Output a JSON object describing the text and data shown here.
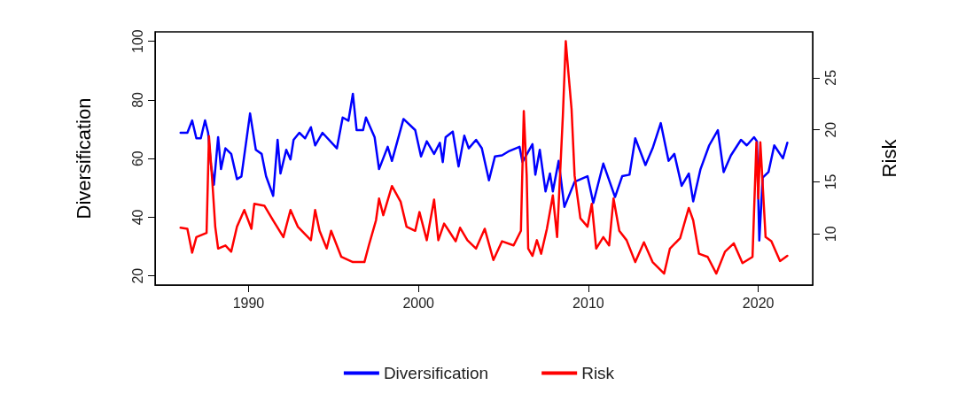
{
  "chart_data": {
    "type": "line",
    "ylabel": "Diversification",
    "y2label": "Risk",
    "xlim": [
      1984.5,
      2023.2
    ],
    "xticks": [
      1990,
      2000,
      2010,
      2020
    ],
    "ylim": [
      16.9,
      103.2
    ],
    "yticks": [
      20,
      40,
      60,
      80,
      100
    ],
    "y2lim": [
      5.1,
      29.4
    ],
    "y2ticks": [
      10,
      15,
      20,
      25
    ],
    "legend": "bottom",
    "marker": "none",
    "line_style": "solid",
    "series": [
      {
        "name": "Diversification",
        "color": "#0000ff",
        "x": [
          1986.0,
          1986.4,
          1986.68,
          1986.93,
          1987.19,
          1987.44,
          1987.62,
          1987.79,
          1987.96,
          1988.21,
          1988.38,
          1988.64,
          1988.98,
          1989.32,
          1989.58,
          1990.09,
          1990.43,
          1990.77,
          1991.03,
          1991.45,
          1991.71,
          1991.88,
          1992.22,
          1992.47,
          1992.65,
          1992.99,
          1993.33,
          1993.67,
          1993.92,
          1994.35,
          1995.2,
          1995.54,
          1995.88,
          1996.14,
          1996.36,
          1996.74,
          1996.91,
          1997.42,
          1997.68,
          1998.19,
          1998.44,
          1999.12,
          1999.81,
          2000.15,
          2000.49,
          2000.92,
          2001.26,
          2001.43,
          2001.6,
          2002.02,
          2002.36,
          2002.7,
          2002.96,
          2003.39,
          2003.73,
          2004.15,
          2004.5,
          2004.92,
          2005.35,
          2005.95,
          2006.12,
          2006.71,
          2006.88,
          2007.14,
          2007.48,
          2007.74,
          2007.91,
          2008.25,
          2008.59,
          2009.19,
          2009.95,
          2010.29,
          2010.88,
          2011.57,
          2011.99,
          2012.42,
          2012.76,
          2013.36,
          2013.78,
          2014.26,
          2014.72,
          2015.06,
          2015.49,
          2015.91,
          2016.17,
          2016.6,
          2017.11,
          2017.62,
          2017.96,
          2018.39,
          2018.98,
          2019.32,
          2019.75,
          2019.92,
          2020.06,
          2020.26,
          2020.6,
          2020.94,
          2021.45,
          2021.71
        ],
        "values": [
          68.8,
          68.8,
          73.0,
          66.9,
          66.9,
          73.0,
          68.8,
          57.8,
          51.1,
          67.3,
          56.4,
          63.5,
          61.6,
          53.0,
          53.9,
          75.4,
          63.0,
          61.6,
          54.0,
          47.3,
          66.4,
          54.9,
          63.0,
          59.7,
          66.4,
          68.8,
          66.9,
          70.7,
          64.5,
          68.8,
          63.5,
          74.0,
          72.9,
          82.1,
          69.7,
          69.7,
          74.0,
          67.3,
          56.4,
          64.0,
          59.2,
          73.5,
          69.7,
          60.7,
          65.9,
          61.6,
          65.4,
          58.8,
          67.3,
          69.2,
          57.3,
          67.8,
          63.5,
          66.4,
          63.5,
          52.6,
          60.7,
          61.1,
          62.6,
          64.0,
          58.8,
          64.9,
          54.5,
          63.0,
          48.8,
          54.9,
          48.8,
          59.2,
          43.5,
          52.1,
          54.0,
          44.9,
          58.3,
          46.9,
          54.0,
          54.5,
          66.9,
          57.8,
          63.5,
          72.1,
          59.2,
          61.6,
          50.7,
          54.9,
          45.4,
          56.4,
          64.5,
          69.7,
          55.4,
          61.1,
          66.4,
          64.5,
          67.3,
          65.9,
          32.1,
          53.5,
          55.4,
          64.5,
          60.1,
          65.4
        ]
      },
      {
        "name": "Risk",
        "color": "#ff0000",
        "axis": "y2",
        "x": [
          1986.0,
          1986.4,
          1986.68,
          1986.93,
          1987.53,
          1987.67,
          1987.87,
          1988.04,
          1988.21,
          1988.64,
          1988.98,
          1989.32,
          1989.75,
          1990.17,
          1990.34,
          1990.94,
          1991.45,
          1992.05,
          1992.47,
          1992.9,
          1993.67,
          1993.92,
          1994.18,
          1994.6,
          1994.86,
          1995.46,
          1996.14,
          1996.82,
          1997.08,
          1997.5,
          1997.68,
          1997.93,
          1998.44,
          1998.95,
          1999.3,
          1999.81,
          2000.06,
          2000.49,
          2000.92,
          2001.17,
          2001.51,
          2002.19,
          2002.45,
          2002.88,
          2003.39,
          2003.9,
          2004.41,
          2004.92,
          2005.6,
          2006.03,
          2006.2,
          2006.37,
          2006.46,
          2006.71,
          2006.97,
          2007.22,
          2007.56,
          2007.91,
          2008.16,
          2008.5,
          2008.67,
          2008.84,
          2009.01,
          2009.19,
          2009.53,
          2009.95,
          2010.2,
          2010.46,
          2010.88,
          2011.22,
          2011.48,
          2011.82,
          2012.25,
          2012.76,
          2013.27,
          2013.78,
          2014.46,
          2014.8,
          2015.4,
          2015.91,
          2016.17,
          2016.51,
          2017.02,
          2017.53,
          2018.04,
          2018.56,
          2019.07,
          2019.66,
          2019.89,
          2020.0,
          2020.12,
          2020.43,
          2020.77,
          2021.28,
          2021.71
        ],
        "values": [
          10.6,
          10.5,
          8.2,
          9.7,
          10.1,
          19.4,
          15.0,
          10.7,
          8.6,
          8.9,
          8.3,
          10.7,
          12.3,
          10.5,
          12.9,
          12.7,
          11.3,
          9.7,
          12.3,
          10.7,
          9.4,
          12.3,
          10.3,
          8.6,
          10.3,
          7.8,
          7.3,
          7.3,
          8.9,
          11.3,
          13.4,
          11.8,
          14.6,
          13.1,
          10.7,
          10.3,
          12.1,
          9.4,
          13.3,
          9.4,
          11.0,
          9.3,
          10.6,
          9.4,
          8.6,
          10.5,
          7.5,
          9.3,
          8.9,
          10.3,
          21.8,
          15.6,
          8.6,
          7.9,
          9.4,
          8.1,
          10.5,
          13.7,
          9.7,
          21.4,
          28.5,
          25.2,
          22.0,
          15.6,
          11.5,
          10.7,
          12.9,
          8.6,
          9.7,
          8.9,
          13.4,
          10.3,
          9.4,
          7.3,
          9.2,
          7.3,
          6.2,
          8.6,
          9.6,
          12.5,
          11.3,
          8.1,
          7.8,
          6.2,
          8.3,
          9.1,
          7.2,
          7.8,
          18.8,
          13.4,
          18.8,
          9.7,
          9.3,
          7.4,
          7.9
        ]
      }
    ]
  }
}
